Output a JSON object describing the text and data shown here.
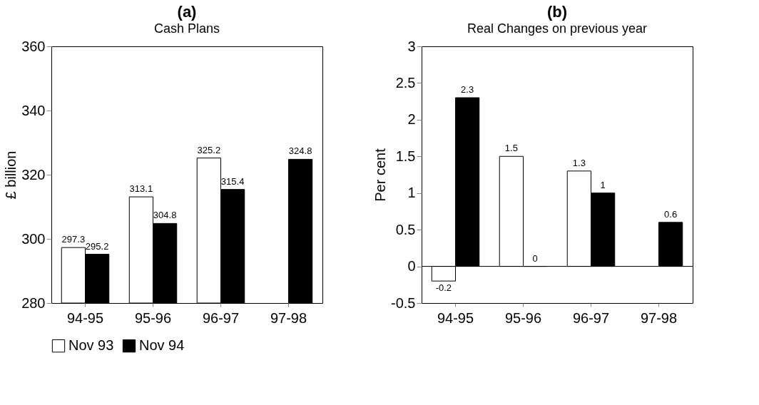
{
  "chart_data": [
    {
      "type": "bar",
      "title": "(a)",
      "subtitle": "Cash Plans",
      "ylabel": "£ billion",
      "categories": [
        "94-95",
        "95-96",
        "96-97",
        "97-98"
      ],
      "series": [
        {
          "name": "Nov 93",
          "color": "#ffffff",
          "values": [
            297.3,
            313.1,
            325.2,
            null
          ]
        },
        {
          "name": "Nov 94",
          "color": "#000000",
          "values": [
            295.2,
            304.8,
            315.4,
            324.8
          ]
        }
      ],
      "ylim": [
        280,
        360
      ],
      "yticks": [
        280,
        300,
        320,
        340,
        360
      ],
      "data_labels": true,
      "grid": false,
      "legend": "bottom"
    },
    {
      "type": "bar",
      "title": "(b)",
      "subtitle": "Real Changes on previous year",
      "ylabel": "Per cent",
      "categories": [
        "94-95",
        "95-96",
        "96-97",
        "97-98"
      ],
      "series": [
        {
          "name": "Nov 93",
          "color": "#ffffff",
          "values": [
            -0.2,
            1.5,
            1.3,
            null
          ]
        },
        {
          "name": "Nov 94",
          "color": "#000000",
          "values": [
            2.3,
            0,
            1,
            0.6
          ]
        }
      ],
      "ylim": [
        -0.5,
        3
      ],
      "yticks": [
        -0.5,
        0,
        0.5,
        1,
        1.5,
        2,
        2.5,
        3
      ],
      "data_labels": true,
      "grid": false,
      "legend": "bottom",
      "ref_lines": [
        {
          "axis": "y",
          "value": 0,
          "color": "#000000"
        }
      ]
    }
  ]
}
